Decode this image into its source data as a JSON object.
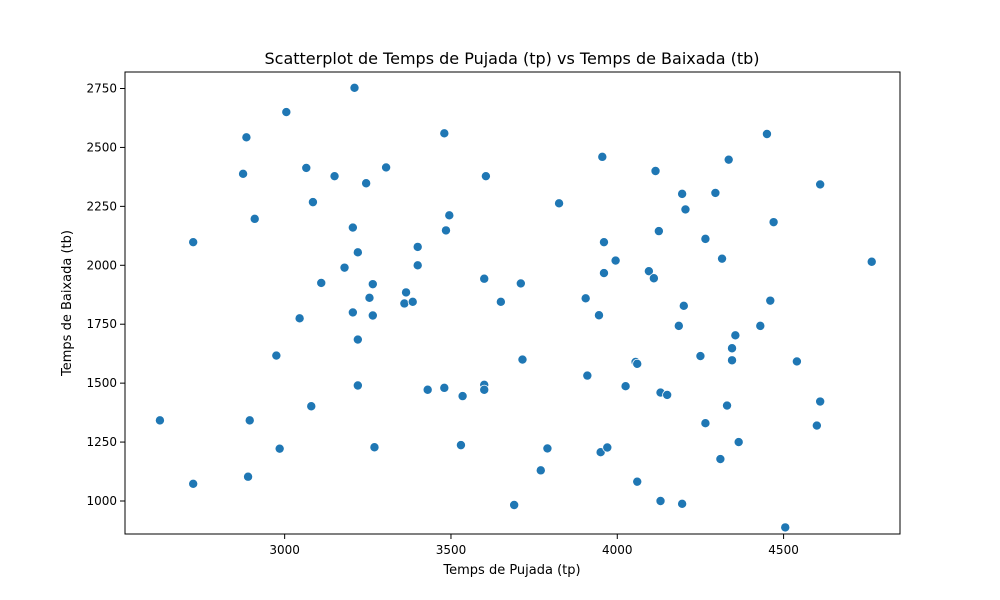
{
  "chart_data": {
    "type": "scatter",
    "title": "Scatterplot de Temps de Pujada (tp) vs Temps de Baixada (tb)",
    "xlabel": "Temps de Pujada (tp)",
    "ylabel": "Temps de Baixada (tb)",
    "xlim": [
      2520,
      4850
    ],
    "ylim": [
      860,
      2820
    ],
    "xticks": [
      3000,
      3500,
      4000,
      4500
    ],
    "yticks": [
      1000,
      1250,
      1500,
      1750,
      2000,
      2250,
      2500,
      2750
    ],
    "grid": false,
    "legend": "none",
    "colors": {
      "marker": "#1f77b4",
      "marker_edge": "#ffffff",
      "axes": "#000000"
    },
    "points": [
      [
        2625,
        1342
      ],
      [
        2725,
        2098
      ],
      [
        2725,
        1073
      ],
      [
        2875,
        2388
      ],
      [
        2885,
        2543
      ],
      [
        2890,
        1103
      ],
      [
        2895,
        1342
      ],
      [
        2910,
        2197
      ],
      [
        2975,
        1617
      ],
      [
        2985,
        1222
      ],
      [
        3005,
        2650
      ],
      [
        3045,
        1775
      ],
      [
        3065,
        2413
      ],
      [
        3080,
        1402
      ],
      [
        3085,
        2268
      ],
      [
        3110,
        1925
      ],
      [
        3150,
        2378
      ],
      [
        3180,
        1990
      ],
      [
        3205,
        2160
      ],
      [
        3205,
        1800
      ],
      [
        3210,
        2753
      ],
      [
        3220,
        2055
      ],
      [
        3220,
        1685
      ],
      [
        3220,
        1490
      ],
      [
        3245,
        2348
      ],
      [
        3255,
        1862
      ],
      [
        3265,
        1920
      ],
      [
        3265,
        1787
      ],
      [
        3270,
        1228
      ],
      [
        3305,
        2415
      ],
      [
        3360,
        1838
      ],
      [
        3365,
        1885
      ],
      [
        3385,
        1845
      ],
      [
        3400,
        2078
      ],
      [
        3400,
        2000
      ],
      [
        3430,
        1472
      ],
      [
        3480,
        2560
      ],
      [
        3480,
        1480
      ],
      [
        3485,
        2148
      ],
      [
        3495,
        2212
      ],
      [
        3530,
        1237
      ],
      [
        3535,
        1445
      ],
      [
        3600,
        1943
      ],
      [
        3600,
        1493
      ],
      [
        3600,
        1472
      ],
      [
        3605,
        2378
      ],
      [
        3650,
        1845
      ],
      [
        3690,
        983
      ],
      [
        3710,
        1923
      ],
      [
        3715,
        1600
      ],
      [
        3770,
        1130
      ],
      [
        3790,
        1223
      ],
      [
        3825,
        2263
      ],
      [
        3905,
        1860
      ],
      [
        3910,
        1532
      ],
      [
        3945,
        1788
      ],
      [
        3955,
        2460
      ],
      [
        3950,
        1207
      ],
      [
        3960,
        1967
      ],
      [
        3960,
        2098
      ],
      [
        3970,
        1227
      ],
      [
        3995,
        2020
      ],
      [
        4025,
        1487
      ],
      [
        4055,
        1590
      ],
      [
        4060,
        1582
      ],
      [
        4060,
        1082
      ],
      [
        4095,
        1975
      ],
      [
        4110,
        1945
      ],
      [
        4115,
        2400
      ],
      [
        4125,
        2145
      ],
      [
        4130,
        1460
      ],
      [
        4130,
        1000
      ],
      [
        4150,
        1450
      ],
      [
        4185,
        1743
      ],
      [
        4195,
        2303
      ],
      [
        4195,
        988
      ],
      [
        4200,
        1828
      ],
      [
        4205,
        2237
      ],
      [
        4250,
        1615
      ],
      [
        4265,
        2112
      ],
      [
        4265,
        1330
      ],
      [
        4295,
        2307
      ],
      [
        4310,
        1178
      ],
      [
        4315,
        2028
      ],
      [
        4330,
        1405
      ],
      [
        4335,
        2448
      ],
      [
        4345,
        1648
      ],
      [
        4345,
        1597
      ],
      [
        4355,
        1703
      ],
      [
        4365,
        1250
      ],
      [
        4430,
        1743
      ],
      [
        4450,
        2557
      ],
      [
        4460,
        1850
      ],
      [
        4470,
        2183
      ],
      [
        4505,
        888
      ],
      [
        4540,
        1592
      ],
      [
        4600,
        1320
      ],
      [
        4610,
        2343
      ],
      [
        4610,
        1422
      ],
      [
        4765,
        2015
      ]
    ]
  }
}
